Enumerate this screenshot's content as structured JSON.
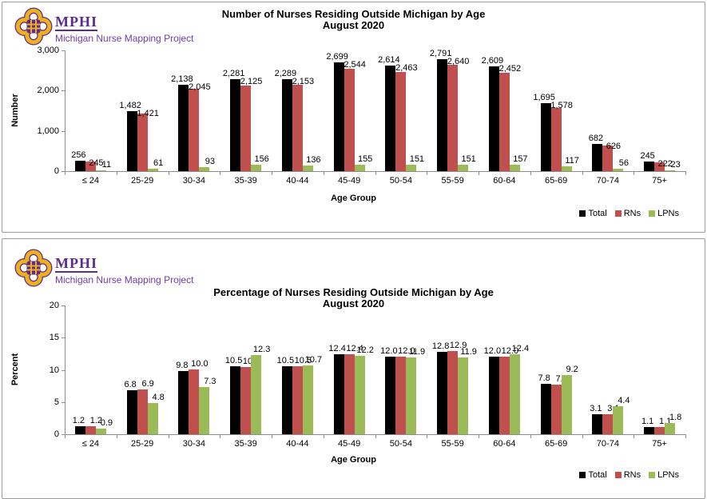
{
  "logo": {
    "org": "MPHI",
    "project": "Michigan Nurse Mapping Project"
  },
  "colors": {
    "total": "#000000",
    "rns": "#c0504d",
    "lpns": "#9bbb59",
    "purple": "#5b2c8f",
    "gold": "#efb019",
    "axis": "#8c8c8c"
  },
  "legend": [
    "Total",
    "RNs",
    "LPNs"
  ],
  "chart_data": [
    {
      "type": "bar",
      "title": "Number of Nurses Residing Outside Michigan by Age",
      "subtitle": "August 2020",
      "xlabel": "Age Group",
      "ylabel": "Number",
      "ylim": [
        0,
        3000
      ],
      "ytick_values": [
        0,
        1000,
        2000,
        3000
      ],
      "ytick_labels": [
        "0",
        "1,000",
        "2,000",
        "3,000"
      ],
      "grid": false,
      "legend_position": "bottom-right",
      "categories": [
        "≤ 24",
        "25-29",
        "30-34",
        "35-39",
        "40-44",
        "45-49",
        "50-54",
        "55-59",
        "60-64",
        "65-69",
        "70-74",
        "75+"
      ],
      "series": [
        {
          "name": "Total",
          "color_key": "total",
          "values": [
            256,
            1482,
            2138,
            2281,
            2289,
            2699,
            2614,
            2791,
            2609,
            1695,
            682,
            245
          ],
          "labels": [
            "256",
            "1,482",
            "2,138",
            "2,281",
            "2,289",
            "2,699",
            "2,614",
            "2,791",
            "2,609",
            "1,695",
            "682",
            "245"
          ]
        },
        {
          "name": "RNs",
          "color_key": "rns",
          "values": [
            245,
            1421,
            2045,
            2125,
            2153,
            2544,
            2463,
            2640,
            2452,
            1578,
            626,
            222
          ],
          "labels": [
            "245",
            "1,421",
            "2,045",
            "2,125",
            "2,153",
            "2,544",
            "2,463",
            "2,640",
            "2,452",
            "1,578",
            "626",
            "222"
          ]
        },
        {
          "name": "LPNs",
          "color_key": "lpns",
          "values": [
            11,
            61,
            93,
            156,
            136,
            155,
            151,
            151,
            157,
            117,
            56,
            23
          ],
          "labels": [
            "11",
            "61",
            "93",
            "156",
            "136",
            "155",
            "151",
            "151",
            "157",
            "117",
            "56",
            "23"
          ]
        }
      ]
    },
    {
      "type": "bar",
      "title": "Percentage of Nurses Residing Outside Michigan by Age",
      "subtitle": "August 2020",
      "xlabel": "Age Group",
      "ylabel": "Percent",
      "ylim": [
        0,
        20
      ],
      "ytick_values": [
        0,
        5,
        10,
        15,
        20
      ],
      "ytick_labels": [
        "0",
        "5",
        "10",
        "15",
        "20"
      ],
      "grid": false,
      "legend_position": "bottom-right",
      "categories": [
        "≤ 24",
        "25-29",
        "30-34",
        "35-39",
        "40-44",
        "45-49",
        "50-54",
        "55-59",
        "60-64",
        "65-69",
        "70-74",
        "75+"
      ],
      "series": [
        {
          "name": "Total",
          "color_key": "total",
          "values": [
            1.2,
            6.8,
            9.8,
            10.5,
            10.5,
            12.4,
            12.0,
            12.8,
            12.0,
            7.8,
            3.1,
            1.1
          ],
          "labels": [
            "1.2",
            "6.8",
            "9.8",
            "10.5",
            "10.5",
            "12.4",
            "12.0",
            "12.8",
            "12.0",
            "7.8",
            "3.1",
            "1.1"
          ]
        },
        {
          "name": "RNs",
          "color_key": "rns",
          "values": [
            1.2,
            6.9,
            10.0,
            10.4,
            10.5,
            12.4,
            12.0,
            12.9,
            12.0,
            7.7,
            3.1,
            1.1
          ],
          "labels": [
            "1.2",
            "6.9",
            "10.0",
            "10.4",
            "10.5",
            "12.4",
            "12.0",
            "12.9",
            "12.0",
            "7.7",
            "3.1",
            "1.1"
          ]
        },
        {
          "name": "LPNs",
          "color_key": "lpns",
          "values": [
            0.9,
            4.8,
            7.3,
            12.3,
            10.7,
            12.2,
            11.9,
            11.9,
            12.4,
            9.2,
            4.4,
            1.8
          ],
          "labels": [
            "0.9",
            "4.8",
            "7.3",
            "12.3",
            "10.7",
            "12.2",
            "11.9",
            "11.9",
            "12.4",
            "9.2",
            "4.4",
            "1.8"
          ]
        }
      ]
    }
  ]
}
